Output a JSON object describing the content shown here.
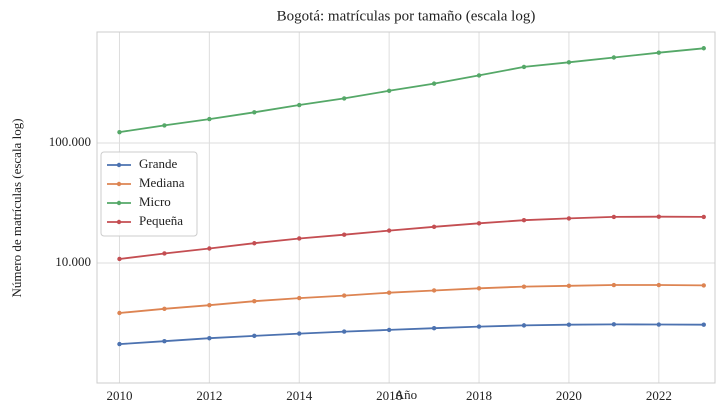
{
  "chart_data": {
    "type": "line",
    "title": "Bogotá: matrículas por tamaño (escala log)",
    "x_label": "Año",
    "y_label": "Número de matrículas (escala log)",
    "x": [
      2010,
      2011,
      2012,
      2013,
      2014,
      2015,
      2016,
      2017,
      2018,
      2019,
      2020,
      2021,
      2022,
      2023
    ],
    "series": [
      {
        "name": "Grande",
        "color": "#4c72b0",
        "values": [
          2110,
          2230,
          2360,
          2470,
          2580,
          2680,
          2770,
          2860,
          2950,
          3020,
          3060,
          3080,
          3070,
          3060
        ]
      },
      {
        "name": "Mediana",
        "color": "#dd8452",
        "values": [
          3830,
          4150,
          4450,
          4800,
          5100,
          5350,
          5650,
          5900,
          6150,
          6350,
          6450,
          6550,
          6550,
          6500
        ]
      },
      {
        "name": "Micro",
        "color": "#55a868",
        "values": [
          123000,
          140000,
          158000,
          180000,
          207000,
          235000,
          272000,
          312000,
          365000,
          430000,
          470000,
          515000,
          565000,
          615000
        ]
      },
      {
        "name": "Pequeña",
        "color": "#c44e52",
        "values": [
          10800,
          12000,
          13200,
          14600,
          16000,
          17200,
          18600,
          20000,
          21400,
          22700,
          23500,
          24200,
          24300,
          24200
        ]
      }
    ],
    "xlim": [
      2009.5,
      2023.25
    ],
    "ylim": [
      1000,
      840000
    ],
    "log_y": true,
    "xticks": [
      2010,
      2012,
      2014,
      2016,
      2018,
      2020,
      2022
    ],
    "yticks": [
      {
        "value": 10000,
        "label": "10.000"
      },
      {
        "value": 100000,
        "label": "100.000"
      }
    ],
    "grid": true,
    "legend": "upper left"
  }
}
